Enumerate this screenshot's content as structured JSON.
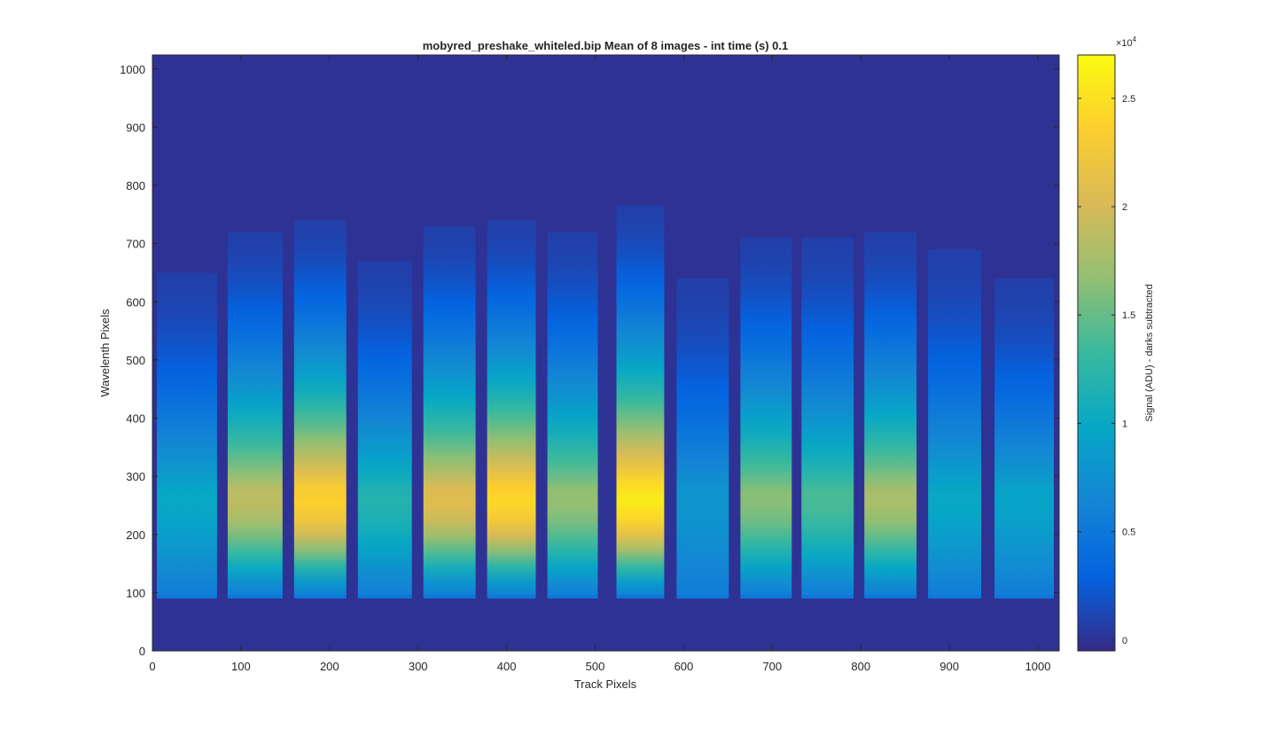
{
  "chart_data": {
    "type": "heatmap",
    "title": "mobyred_preshake_whiteled.bip  Mean of 8 images - int time (s) 0.1",
    "xlabel": "Track Pixels",
    "ylabel": "Wavelenth Pixels",
    "xlim": [
      0,
      1024
    ],
    "ylim": [
      0,
      1024
    ],
    "x_ticks": [
      0,
      100,
      200,
      300,
      400,
      500,
      600,
      700,
      800,
      900,
      1000
    ],
    "y_ticks": [
      0,
      100,
      200,
      300,
      400,
      500,
      600,
      700,
      800,
      900,
      1000
    ],
    "grid": false,
    "background_signal": 0,
    "colorbar": {
      "label": "Signal (ADU) - darks subtracted",
      "exponent_label": "×10",
      "exponent": "4",
      "range": [
        -500,
        27000
      ],
      "ticks": [
        {
          "value": 0,
          "label": "0"
        },
        {
          "value": 5000,
          "label": "0.5"
        },
        {
          "value": 10000,
          "label": "1"
        },
        {
          "value": 15000,
          "label": "1.5"
        },
        {
          "value": 20000,
          "label": "2"
        },
        {
          "value": 25000,
          "label": "2.5"
        }
      ],
      "colormap": "parula",
      "colormap_stops": [
        "#352a87",
        "#0363e1",
        "#1485d4",
        "#06a7c6",
        "#38b99e",
        "#92bf73",
        "#d9ba56",
        "#fcce2e",
        "#f9fb0e"
      ]
    },
    "fibers": [
      {
        "x_start": 5,
        "x_end": 73,
        "y_bottom": 90,
        "y_top": 650,
        "peak": 10000,
        "peak_y": 270
      },
      {
        "x_start": 85,
        "x_end": 147,
        "y_bottom": 90,
        "y_top": 720,
        "peak": 19000,
        "peak_y": 270
      },
      {
        "x_start": 160,
        "x_end": 219,
        "y_bottom": 90,
        "y_top": 740,
        "peak": 24000,
        "peak_y": 270
      },
      {
        "x_start": 232,
        "x_end": 293,
        "y_bottom": 90,
        "y_top": 670,
        "peak": 12000,
        "peak_y": 270
      },
      {
        "x_start": 306,
        "x_end": 365,
        "y_bottom": 90,
        "y_top": 730,
        "peak": 21000,
        "peak_y": 270
      },
      {
        "x_start": 378,
        "x_end": 433,
        "y_bottom": 90,
        "y_top": 740,
        "peak": 24500,
        "peak_y": 270
      },
      {
        "x_start": 446,
        "x_end": 503,
        "y_bottom": 90,
        "y_top": 720,
        "peak": 17000,
        "peak_y": 270
      },
      {
        "x_start": 524,
        "x_end": 578,
        "y_bottom": 90,
        "y_top": 765,
        "peak": 26000,
        "peak_y": 270
      },
      {
        "x_start": 592,
        "x_end": 651,
        "y_bottom": 90,
        "y_top": 640,
        "peak": 8000,
        "peak_y": 270
      },
      {
        "x_start": 664,
        "x_end": 722,
        "y_bottom": 90,
        "y_top": 710,
        "peak": 16500,
        "peak_y": 270
      },
      {
        "x_start": 733,
        "x_end": 792,
        "y_bottom": 90,
        "y_top": 710,
        "peak": 14000,
        "peak_y": 270
      },
      {
        "x_start": 804,
        "x_end": 863,
        "y_bottom": 90,
        "y_top": 720,
        "peak": 18000,
        "peak_y": 270
      },
      {
        "x_start": 876,
        "x_end": 936,
        "y_bottom": 90,
        "y_top": 690,
        "peak": 10000,
        "peak_y": 270
      },
      {
        "x_start": 951,
        "x_end": 1018,
        "y_bottom": 90,
        "y_top": 640,
        "peak": 9500,
        "peak_y": 270
      }
    ]
  }
}
